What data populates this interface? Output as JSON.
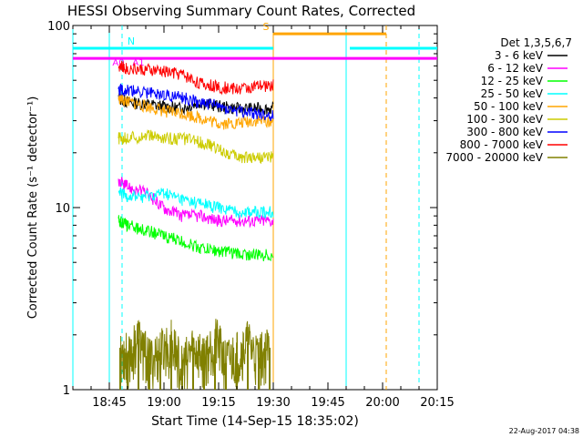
{
  "chart_data": {
    "type": "line",
    "title": "HESSI Observing Summary Count Rates, Corrected",
    "xlabel": "Start Time (14-Sep-15 18:35:02)",
    "ylabel": "Corrected Count Rate (s⁻¹ detector⁻¹)",
    "yscale": "log",
    "ylim": [
      1,
      100
    ],
    "xlim_minutes": [
      0,
      100
    ],
    "x_ticks": [
      {
        "t": 10,
        "label": "18:45"
      },
      {
        "t": 25,
        "label": "19:00"
      },
      {
        "t": 40,
        "label": "19:15"
      },
      {
        "t": 55,
        "label": "19:30"
      },
      {
        "t": 70,
        "label": "19:45"
      },
      {
        "t": 85,
        "label": "20:00"
      },
      {
        "t": 100,
        "label": "20:15"
      }
    ],
    "y_ticks": [
      {
        "v": 1,
        "label": "1"
      },
      {
        "v": 10,
        "label": "10"
      },
      {
        "v": 100,
        "label": "100"
      }
    ],
    "legend_title": "Det 1,3,5,6,7",
    "legend_position": "right",
    "series": [
      {
        "name": "3 - 6 keV",
        "color": "#000000",
        "x": [
          12.5,
          15,
          20,
          25,
          30,
          35,
          40,
          45,
          50,
          55
        ],
        "y": [
          40,
          38,
          37,
          36,
          35,
          38,
          36,
          35,
          35,
          35
        ]
      },
      {
        "name": "6 - 12 keV",
        "color": "#ff00ff",
        "x": [
          12.5,
          15,
          20,
          25,
          30,
          35,
          40,
          45,
          50,
          55
        ],
        "y": [
          14,
          13,
          12,
          10,
          9,
          9,
          8.5,
          8.5,
          8.5,
          8.5
        ]
      },
      {
        "name": "12 - 25 keV",
        "color": "#00ff00",
        "x": [
          12.5,
          15,
          20,
          25,
          30,
          35,
          40,
          45,
          50,
          55
        ],
        "y": [
          8.5,
          8,
          7.5,
          7,
          6.5,
          6,
          5.8,
          5.6,
          5.5,
          5.5
        ]
      },
      {
        "name": "25 - 50 keV",
        "color": "#00ffff",
        "x": [
          12.5,
          15,
          20,
          25,
          30,
          35,
          40,
          45,
          50,
          55
        ],
        "y": [
          12,
          11.5,
          11.5,
          12,
          11,
          10.5,
          10,
          9.5,
          9.5,
          9.5
        ]
      },
      {
        "name": "50 - 100 keV",
        "color": "#ffa500",
        "x": [
          12.5,
          15,
          20,
          25,
          30,
          35,
          40,
          45,
          50,
          55
        ],
        "y": [
          40,
          38,
          36,
          34,
          33,
          31,
          29,
          29,
          30,
          30
        ]
      },
      {
        "name": "100 - 300 keV",
        "color": "#cccc00",
        "x": [
          12.5,
          15,
          20,
          25,
          30,
          35,
          40,
          45,
          50,
          55
        ],
        "y": [
          24,
          24,
          25,
          24,
          24,
          23,
          21,
          19,
          19,
          19
        ]
      },
      {
        "name": "300 - 800 keV",
        "color": "#0000ff",
        "x": [
          12.5,
          15,
          20,
          25,
          30,
          35,
          40,
          45,
          50,
          55
        ],
        "y": [
          45,
          44,
          43,
          42,
          40,
          38,
          36,
          34,
          33,
          32
        ]
      },
      {
        "name": "800 - 7000 keV",
        "color": "#ff0000",
        "x": [
          12.5,
          15,
          20,
          25,
          30,
          35,
          40,
          45,
          50,
          55
        ],
        "y": [
          60,
          58,
          57,
          56,
          54,
          48,
          46,
          45,
          46,
          47
        ]
      },
      {
        "name": "7000 - 20000 keV",
        "color": "#808000",
        "x": [
          13,
          15,
          18,
          21,
          24,
          27,
          30,
          33,
          36,
          39,
          42,
          45,
          48,
          51,
          54
        ],
        "y": [
          1.7,
          1.5,
          1.9,
          1.4,
          1.6,
          1.8,
          1.3,
          1.7,
          1.5,
          1.9,
          1.4,
          1.6,
          1.8,
          1.5,
          1.7
        ]
      }
    ],
    "annotations": {
      "solid_vertical_lines": [
        {
          "t": 0,
          "color": "#00ffff"
        },
        {
          "t": 10,
          "color": "#00ffff"
        },
        {
          "t": 75,
          "color": "#00ffff"
        },
        {
          "t": 55,
          "color": "#ffa500"
        }
      ],
      "dashed_vertical_lines": [
        {
          "t": 13.5,
          "color": "#00ffff"
        },
        {
          "t": 86,
          "color": "#ffa500"
        },
        {
          "t": 95,
          "color": "#00ffff"
        }
      ],
      "horizontal_bars": [
        {
          "label": "N",
          "color": "#00ffff",
          "y_value": 75,
          "ranges": [
            [
              0,
              55
            ],
            [
              76,
              100
            ]
          ]
        },
        {
          "label": "S",
          "color": "#ffa500",
          "y_value": 90,
          "ranges": [
            [
              55,
              86
            ]
          ]
        },
        {
          "label": "",
          "color": "#ff00ff",
          "y_value": 66,
          "ranges": [
            [
              0,
              100
            ]
          ]
        }
      ],
      "markers": [
        {
          "label": "A0",
          "color": "#ff00ff",
          "t": 12.5
        },
        {
          "label": "A1",
          "color": "#ff00ff",
          "t": 18
        }
      ]
    },
    "footer_date": "22-Aug-2017 04:38"
  }
}
